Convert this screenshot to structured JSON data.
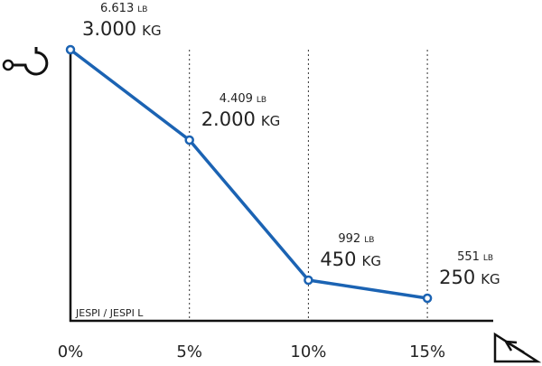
{
  "chart_data": {
    "type": "line",
    "categories": [
      "0%",
      "5%",
      "10%",
      "15%"
    ],
    "values": [
      3000,
      2000,
      450,
      250
    ],
    "value_labels": [
      "3.000",
      "2.000",
      "450",
      "250"
    ],
    "unit": "KG",
    "lb_labels": [
      "6.613",
      "4.409",
      "992",
      "551"
    ],
    "lb_unit": "LB",
    "color": "#1b63b3",
    "ylim": [
      0,
      3000
    ],
    "grid": true,
    "note": "JESPI / JESPI L"
  }
}
